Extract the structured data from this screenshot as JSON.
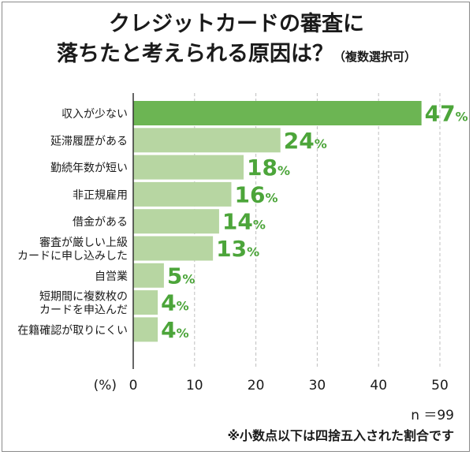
{
  "title": {
    "line1": "クレジットカードの審査に",
    "line2": "落ちたと考えられる原因は？",
    "line2_sub": "（複数選択可）"
  },
  "footer": {
    "n_label": "n ＝99",
    "note": "※小数点以下は四捨五入された割合です"
  },
  "colors": {
    "bar_top": "#6cb553",
    "bar": "#b7d6a2",
    "label_value": "#4ca53a",
    "grid": "#bfbfbf"
  },
  "chart_data": {
    "type": "bar",
    "orientation": "horizontal",
    "unit_label": "(%)",
    "categories": [
      [
        "収入が少ない"
      ],
      [
        "延滞履歴がある"
      ],
      [
        "勤続年数が短い"
      ],
      [
        "非正規雇用"
      ],
      [
        "借金がある"
      ],
      [
        "審査が厳しい上級",
        "カードに申し込みした"
      ],
      [
        "自営業"
      ],
      [
        "短期間に複数枚の",
        "カードを申込んだ"
      ],
      [
        "在籍確認が取りにくい"
      ]
    ],
    "values": [
      47,
      24,
      18,
      16,
      14,
      13,
      5,
      4,
      4
    ],
    "value_labels": [
      "47",
      "24",
      "18",
      "16",
      "14",
      "13",
      "5",
      "4",
      "4"
    ],
    "value_suffix": "%",
    "xlim": [
      0,
      50
    ],
    "xticks": [
      0,
      10,
      20,
      30,
      40,
      50
    ],
    "grid": true
  }
}
